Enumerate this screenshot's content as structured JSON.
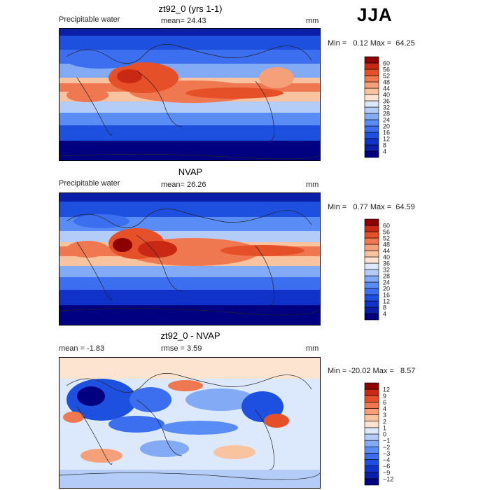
{
  "season": "JJA",
  "panels": [
    {
      "title": "zt92_0 (yrs 1-1)",
      "left_label": "Precipitable water",
      "center_label": "mean=  24.43",
      "units": "mm",
      "min_label": "Min =",
      "min_value": "0.12",
      "max_label": "Max =",
      "max_value": "64.25"
    },
    {
      "title": "NVAP",
      "left_label": "Precipitable water",
      "center_label": "mean=  26.26",
      "units": "mm",
      "min_label": "Min =",
      "min_value": "0.77",
      "max_label": "Max =",
      "max_value": "64.59"
    },
    {
      "title": "zt92_0 - NVAP",
      "left_label": "mean =  -1.83",
      "center_label": "rmse =   3.59",
      "units": "mm",
      "min_label": "Min =",
      "min_value": "-20.02",
      "max_label": "Max =",
      "max_value": "8.57"
    }
  ],
  "chart_data": [
    {
      "type": "heatmap",
      "title": "zt92_0 (yrs 1-1)",
      "variable": "Precipitable water",
      "units": "mm",
      "mean": 24.43,
      "min": 0.12,
      "max": 64.25,
      "colorbar_levels": [
        4,
        8,
        12,
        16,
        20,
        24,
        28,
        32,
        36,
        40,
        44,
        48,
        52,
        56,
        60
      ]
    },
    {
      "type": "heatmap",
      "title": "NVAP",
      "variable": "Precipitable water",
      "units": "mm",
      "mean": 26.26,
      "min": 0.77,
      "max": 64.59,
      "colorbar_levels": [
        4,
        8,
        12,
        16,
        20,
        24,
        28,
        32,
        36,
        40,
        44,
        48,
        52,
        56,
        60
      ]
    },
    {
      "type": "heatmap",
      "title": "zt92_0 - NVAP",
      "units": "mm",
      "mean": -1.83,
      "rmse": 3.59,
      "min": -20.02,
      "max": 8.57,
      "colorbar_levels": [
        -12,
        -9,
        -6,
        -4,
        -3,
        -2,
        -1,
        0,
        1,
        2,
        3,
        4,
        6,
        9,
        12
      ]
    }
  ],
  "colors": {
    "abs_scale": [
      "#000080",
      "#0a1ea8",
      "#1032c8",
      "#1e50e0",
      "#3c6ef0",
      "#5a8cf5",
      "#82aaf5",
      "#b4cdf8",
      "#dce8fc",
      "#fde4d0",
      "#fac3a0",
      "#f5a078",
      "#ef7850",
      "#e65028",
      "#c82814",
      "#8c0000"
    ],
    "diff_scale": [
      "#000080",
      "#0a1ea8",
      "#1032c8",
      "#1e50e0",
      "#3c6ef0",
      "#5a8cf5",
      "#82aaf5",
      "#b4cdf8",
      "#dce8fc",
      "#fde4d0",
      "#fac3a0",
      "#f5a078",
      "#ef7850",
      "#e65028",
      "#c82814",
      "#8c0000"
    ]
  }
}
